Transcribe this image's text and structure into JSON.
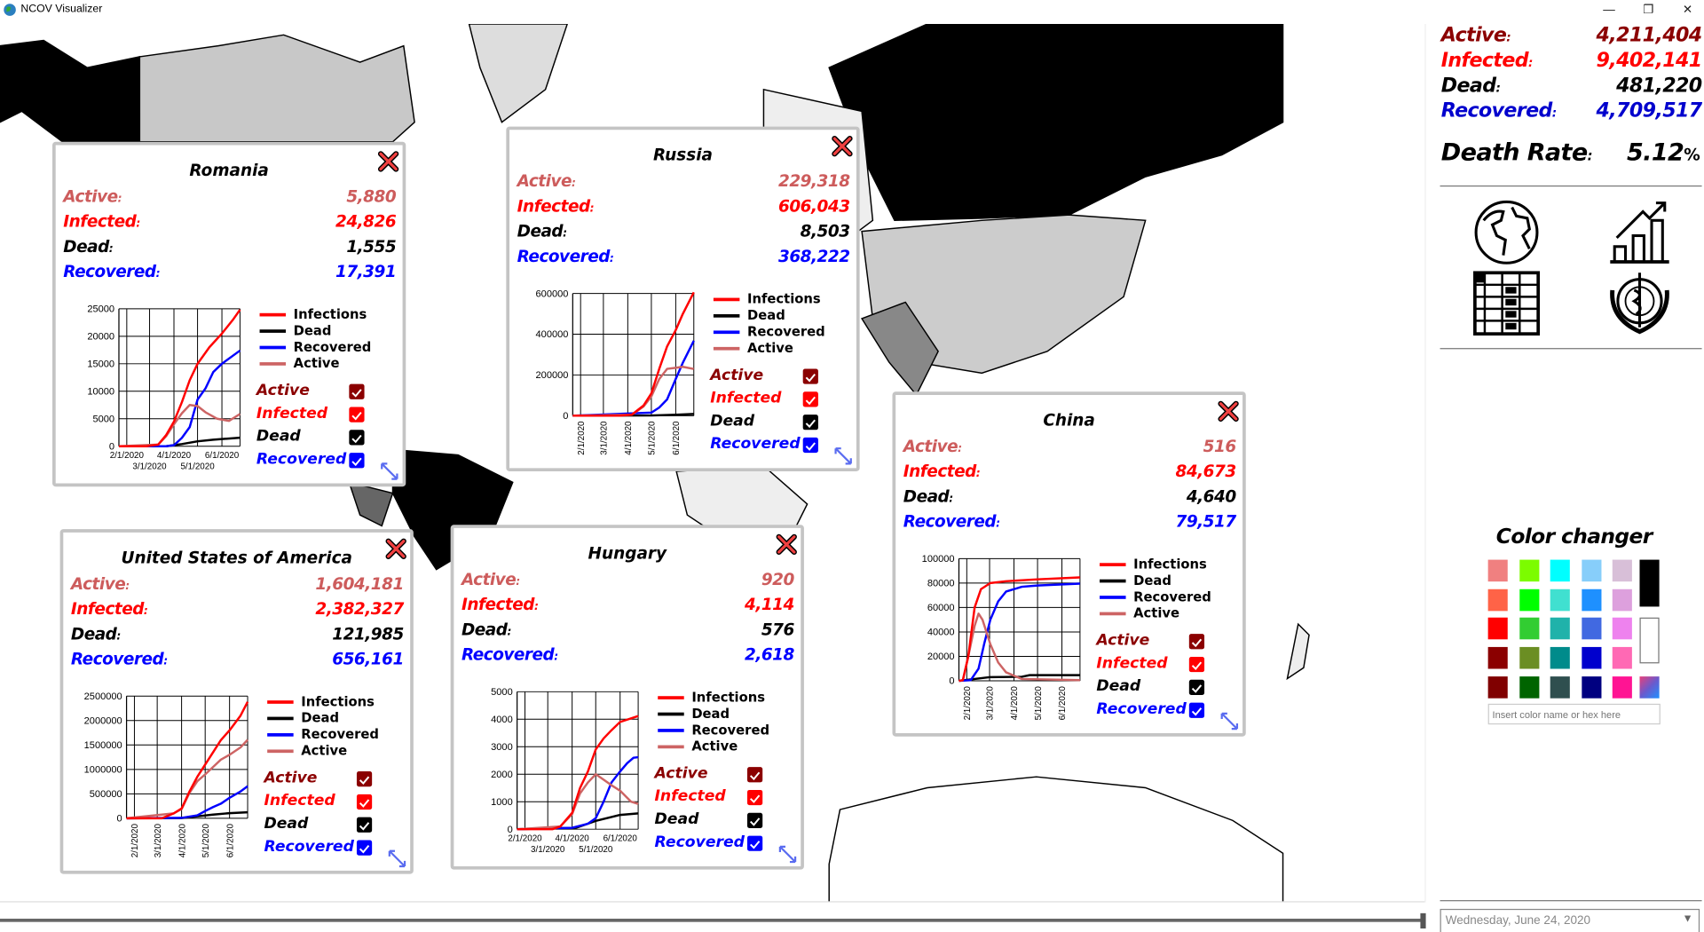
{
  "window": {
    "title": "NCOV Visualizer",
    "minimize": "—",
    "restore": "❐",
    "close": "✕"
  },
  "global_stats": {
    "rows": [
      {
        "label": "Active",
        "value": "4,211,404",
        "color": "#8b0000"
      },
      {
        "label": "Infected",
        "value": "9,402,141",
        "color": "#ff0000"
      },
      {
        "label": "Dead",
        "value": "481,220",
        "color": "#000000"
      },
      {
        "label": "Recovered",
        "value": "4,709,517",
        "color": "#0000cd"
      }
    ],
    "death_rate_label": "Death Rate",
    "death_rate_value": "5.12",
    "death_rate_unit": "%"
  },
  "nav_icons": [
    "globe-icon",
    "chart-icon",
    "table-icon",
    "who-icon"
  ],
  "color_changer": {
    "title": "Color changer",
    "swatches": [
      [
        "#f08080",
        "#7cfc00",
        "#00ffff",
        "#87cefa",
        "#d8bfd8"
      ],
      [
        "#ff6347",
        "#00ff00",
        "#40e0d0",
        "#1e90ff",
        "#dda0dd"
      ],
      [
        "#ff0000",
        "#32cd32",
        "#20b2aa",
        "#4169e1",
        "#ee82ee"
      ],
      [
        "#8b0000",
        "#6b8e23",
        "#008b8b",
        "#0000cd",
        "#ff69b4"
      ],
      [
        "#800000",
        "#006400",
        "#2f4f4f",
        "#000080",
        "#ff1493"
      ]
    ],
    "black": "#000000",
    "white": "#ffffff",
    "input_placeholder": "Insert color name or hex here"
  },
  "date_picker": {
    "value": "Wednesday, June 24, 2020"
  },
  "timeline": {
    "progress": 1.0
  },
  "series_colors": {
    "Infections": "#ff0000",
    "Dead": "#000000",
    "Recovered": "#0000ff",
    "Active": "#cd6464"
  },
  "panel_labels": {
    "active": "Active",
    "infected": "Infected",
    "dead": "Dead",
    "recovered": "Recovered",
    "colon": ":"
  },
  "legend": [
    "Infections",
    "Dead",
    "Recovered",
    "Active"
  ],
  "checkboxes": [
    {
      "label": "Active",
      "color": "#8b0000",
      "checked": true
    },
    {
      "label": "Infected",
      "color": "#ff0000",
      "checked": true
    },
    {
      "label": "Dead",
      "color": "#000000",
      "checked": true
    },
    {
      "label": "Recovered",
      "color": "#0000ff",
      "checked": true
    }
  ],
  "panels": [
    {
      "title": "Romania",
      "active": "5,880",
      "infected": "24,826",
      "dead": "1,555",
      "recovered": "17,391",
      "chart": {
        "ymax": 25000,
        "yticks": [
          "0",
          "5000",
          "10000",
          "15000",
          "20000",
          "25000"
        ],
        "xticks": [
          "2/1/2020",
          "3/1/2020",
          "4/1/2020",
          "5/1/2020",
          "6/1/2020"
        ],
        "series": {
          "Infections": [
            [
              0,
              0
            ],
            [
              35,
              0
            ],
            [
              50,
              300
            ],
            [
              60,
              2000
            ],
            [
              70,
              4500
            ],
            [
              80,
              8000
            ],
            [
              90,
              12000
            ],
            [
              100,
              15000
            ],
            [
              115,
              18000
            ],
            [
              131,
              20500
            ],
            [
              145,
              23000
            ],
            [
              154,
              24826
            ]
          ],
          "Dead": [
            [
              0,
              0
            ],
            [
              60,
              0
            ],
            [
              80,
              400
            ],
            [
              100,
              900
            ],
            [
              120,
              1200
            ],
            [
              154,
              1555
            ]
          ],
          "Recovered": [
            [
              0,
              0
            ],
            [
              60,
              0
            ],
            [
              70,
              200
            ],
            [
              80,
              1500
            ],
            [
              90,
              3500
            ],
            [
              100,
              8500
            ],
            [
              110,
              10500
            ],
            [
              120,
              13500
            ],
            [
              131,
              15000
            ],
            [
              154,
              17391
            ]
          ],
          "Active": [
            [
              0,
              0
            ],
            [
              50,
              300
            ],
            [
              60,
              1800
            ],
            [
              70,
              4000
            ],
            [
              80,
              6000
            ],
            [
              90,
              7500
            ],
            [
              100,
              7300
            ],
            [
              110,
              6200
            ],
            [
              125,
              5000
            ],
            [
              140,
              4600
            ],
            [
              154,
              5880
            ]
          ]
        }
      }
    },
    {
      "title": "Russia",
      "active": "229,318",
      "infected": "606,043",
      "dead": "8,503",
      "recovered": "368,222",
      "chart": {
        "ymax": 600000,
        "yticks": [
          "0",
          "200000",
          "400000",
          "600000"
        ],
        "xticks": [
          "2/1/2020",
          "3/1/2020",
          "4/1/2020",
          "5/1/2020",
          "6/1/2020"
        ],
        "series": {
          "Infections": [
            [
              0,
              0
            ],
            [
              60,
              0
            ],
            [
              75,
              5000
            ],
            [
              90,
              50000
            ],
            [
              100,
              110000
            ],
            [
              110,
              230000
            ],
            [
              120,
              340000
            ],
            [
              131,
              420000
            ],
            [
              140,
              500000
            ],
            [
              154,
              606043
            ]
          ],
          "Dead": [
            [
              0,
              0
            ],
            [
              100,
              1000
            ],
            [
              131,
              5000
            ],
            [
              154,
              8503
            ]
          ],
          "Recovered": [
            [
              0,
              0
            ],
            [
              100,
              15000
            ],
            [
              110,
              40000
            ],
            [
              120,
              80000
            ],
            [
              131,
              180000
            ],
            [
              140,
              260000
            ],
            [
              154,
              368222
            ]
          ],
          "Active": [
            [
              0,
              0
            ],
            [
              75,
              5000
            ],
            [
              90,
              45000
            ],
            [
              100,
              95000
            ],
            [
              110,
              180000
            ],
            [
              120,
              230000
            ],
            [
              131,
              235000
            ],
            [
              140,
              240000
            ],
            [
              154,
              229318
            ]
          ]
        }
      }
    },
    {
      "title": "China",
      "active": "516",
      "infected": "84,673",
      "dead": "4,640",
      "recovered": "79,517",
      "chart": {
        "ymax": 100000,
        "yticks": [
          "0",
          "20000",
          "40000",
          "60000",
          "80000",
          "100000"
        ],
        "xticks": [
          "2/1/2020",
          "3/1/2020",
          "4/1/2020",
          "5/1/2020",
          "6/1/2020"
        ],
        "series": {
          "Infections": [
            [
              0,
              0
            ],
            [
              5,
              500
            ],
            [
              12,
              20000
            ],
            [
              20,
              60000
            ],
            [
              28,
              75000
            ],
            [
              40,
              80000
            ],
            [
              60,
              81500
            ],
            [
              100,
              83000
            ],
            [
              154,
              84673
            ]
          ],
          "Dead": [
            [
              0,
              0
            ],
            [
              20,
              1500
            ],
            [
              40,
              3000
            ],
            [
              80,
              3300
            ],
            [
              90,
              4600
            ],
            [
              154,
              4640
            ]
          ],
          "Recovered": [
            [
              0,
              0
            ],
            [
              15,
              500
            ],
            [
              25,
              10000
            ],
            [
              32,
              30000
            ],
            [
              40,
              50000
            ],
            [
              50,
              65000
            ],
            [
              60,
              73000
            ],
            [
              80,
              77000
            ],
            [
              100,
              78000
            ],
            [
              154,
              79517
            ]
          ],
          "Active": [
            [
              0,
              0
            ],
            [
              5,
              500
            ],
            [
              12,
              20000
            ],
            [
              20,
              45000
            ],
            [
              25,
              55000
            ],
            [
              30,
              50000
            ],
            [
              40,
              30000
            ],
            [
              50,
              15000
            ],
            [
              60,
              7000
            ],
            [
              80,
              1500
            ],
            [
              154,
              516
            ]
          ]
        }
      }
    },
    {
      "title": "United States of America",
      "active": "1,604,181",
      "infected": "2,382,327",
      "dead": "121,985",
      "recovered": "656,161",
      "chart": {
        "ymax": 2500000,
        "yticks": [
          "0",
          "500000",
          "1000000",
          "1500000",
          "2000000",
          "2500000"
        ],
        "xticks": [
          "2/1/2020",
          "3/1/2020",
          "4/1/2020",
          "5/1/2020",
          "6/1/2020"
        ],
        "series": {
          "Infections": [
            [
              0,
              0
            ],
            [
              45,
              0
            ],
            [
              60,
              100000
            ],
            [
              70,
              200000
            ],
            [
              80,
              550000
            ],
            [
              90,
              850000
            ],
            [
              100,
              1100000
            ],
            [
              110,
              1350000
            ],
            [
              120,
              1600000
            ],
            [
              131,
              1800000
            ],
            [
              145,
              2100000
            ],
            [
              154,
              2382327
            ]
          ],
          "Dead": [
            [
              0,
              0
            ],
            [
              70,
              4000
            ],
            [
              90,
              40000
            ],
            [
              110,
              75000
            ],
            [
              131,
              105000
            ],
            [
              154,
              121985
            ]
          ],
          "Recovered": [
            [
              0,
              0
            ],
            [
              70,
              10000
            ],
            [
              90,
              60000
            ],
            [
              100,
              150000
            ],
            [
              110,
              230000
            ],
            [
              120,
              300000
            ],
            [
              131,
              420000
            ],
            [
              145,
              550000
            ],
            [
              154,
              656161
            ]
          ],
          "Active": [
            [
              0,
              0
            ],
            [
              60,
              100000
            ],
            [
              70,
              190000
            ],
            [
              80,
              520000
            ],
            [
              90,
              760000
            ],
            [
              100,
              900000
            ],
            [
              110,
              1050000
            ],
            [
              120,
              1200000
            ],
            [
              131,
              1300000
            ],
            [
              145,
              1450000
            ],
            [
              154,
              1604181
            ]
          ]
        }
      }
    },
    {
      "title": "Hungary",
      "active": "920",
      "infected": "4,114",
      "dead": "576",
      "recovered": "2,618",
      "chart": {
        "ymax": 5000,
        "yticks": [
          "0",
          "1000",
          "2000",
          "3000",
          "4000",
          "5000"
        ],
        "xticks": [
          "2/1/2020",
          "3/1/2020",
          "4/1/2020",
          "5/1/2020",
          "6/1/2020"
        ],
        "series": {
          "Infections": [
            [
              0,
              0
            ],
            [
              45,
              0
            ],
            [
              55,
              100
            ],
            [
              70,
              600
            ],
            [
              80,
              1500
            ],
            [
              90,
              2100
            ],
            [
              100,
              2900
            ],
            [
              110,
              3300
            ],
            [
              120,
              3600
            ],
            [
              131,
              3900
            ],
            [
              154,
              4114
            ]
          ],
          "Dead": [
            [
              0,
              0
            ],
            [
              75,
              50
            ],
            [
              100,
              300
            ],
            [
              131,
              520
            ],
            [
              154,
              576
            ]
          ],
          "Recovered": [
            [
              0,
              0
            ],
            [
              70,
              50
            ],
            [
              90,
              200
            ],
            [
              100,
              400
            ],
            [
              110,
              1000
            ],
            [
              120,
              1700
            ],
            [
              131,
              2100
            ],
            [
              140,
              2400
            ],
            [
              148,
              2600
            ],
            [
              154,
              2618
            ]
          ],
          "Active": [
            [
              0,
              0
            ],
            [
              55,
              100
            ],
            [
              70,
              550
            ],
            [
              80,
              1300
            ],
            [
              90,
              1700
            ],
            [
              100,
              2000
            ],
            [
              110,
              1800
            ],
            [
              120,
              1600
            ],
            [
              131,
              1400
            ],
            [
              145,
              1000
            ],
            [
              154,
              920
            ]
          ]
        }
      }
    }
  ]
}
